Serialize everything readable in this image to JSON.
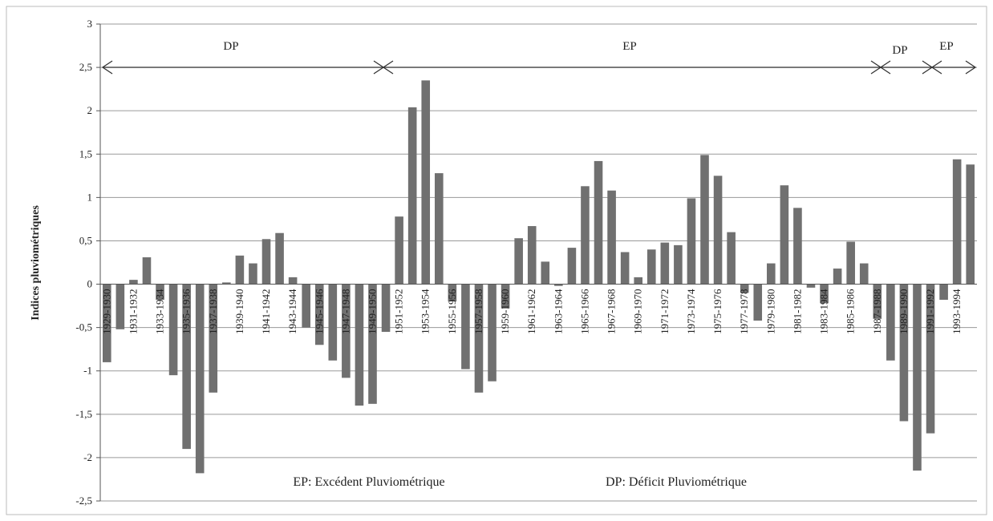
{
  "chart_data": {
    "type": "bar",
    "y_label": "Indices pluviométriques",
    "categories": [
      "1929-1930",
      null,
      "1931-1932",
      null,
      "1933-1934",
      null,
      "1935-1936",
      null,
      "1937-1938",
      null,
      "1939-1940",
      null,
      "1941-1942",
      null,
      "1943-1944",
      null,
      "1945-1946",
      null,
      "1947-1948",
      null,
      "1949-1950",
      null,
      "1951-1952",
      null,
      "1953-1954",
      null,
      "1955-1956",
      null,
      "1957-1958",
      null,
      "1959-1960",
      null,
      "1961-1962",
      null,
      "1963-1964",
      null,
      "1965-1966",
      null,
      "1967-1968",
      null,
      "1969-1970",
      null,
      "1971-1972",
      null,
      "1973-1974",
      null,
      "1975-1976",
      null,
      "1977-1978",
      null,
      "1979-1980",
      null,
      "1981-1982",
      null,
      "1983-1984",
      null,
      "1985-1986",
      null,
      "1987-1988",
      null,
      "1989-1990",
      null,
      "1991-1992",
      null,
      "1993-1994",
      null
    ],
    "values": [
      -0.9,
      -0.52,
      0.05,
      0.31,
      -0.18,
      -1.05,
      -1.9,
      -2.18,
      -1.25,
      0.02,
      0.33,
      0.24,
      0.52,
      0.59,
      0.08,
      -0.5,
      -0.7,
      -0.88,
      -1.08,
      -1.4,
      -1.38,
      -0.55,
      0.78,
      2.04,
      2.35,
      1.28,
      -0.2,
      -0.98,
      -1.25,
      -1.12,
      -0.28,
      0.53,
      0.67,
      0.26,
      -0.02,
      0.42,
      1.13,
      1.42,
      1.08,
      0.37,
      0.08,
      0.4,
      0.48,
      0.45,
      0.99,
      1.49,
      1.25,
      0.6,
      -0.1,
      -0.42,
      0.24,
      1.14,
      0.88,
      -0.04,
      -0.22,
      0.18,
      0.49,
      0.24,
      -0.4,
      -0.88,
      -1.58,
      -2.15,
      -1.72,
      -0.18,
      1.44,
      1.38
    ],
    "color": "#707070",
    "ylim": [
      -2.5,
      3
    ],
    "yticks": [
      {
        "value": -2.5,
        "label": "-2,5"
      },
      -2,
      {
        "value": -1.5,
        "label": "-1,5"
      },
      -1,
      {
        "value": -0.5,
        "label": "-0,5"
      },
      0,
      {
        "value": 0.5,
        "label": "0,5"
      },
      1,
      {
        "value": 1.5,
        "label": "1,5"
      },
      2,
      {
        "value": 2.5,
        "label": "2,5"
      },
      3
    ],
    "grid": true,
    "periods": [
      "DP",
      "EP",
      "DP",
      "EP"
    ],
    "annotations": [
      "EP: Excédent Pluviométrique",
      "DP: Déficit Pluviométrique"
    ]
  }
}
